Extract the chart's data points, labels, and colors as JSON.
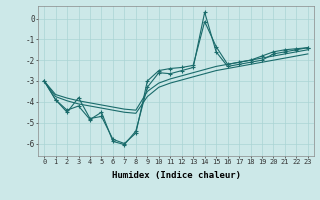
{
  "xlabel": "Humidex (Indice chaleur)",
  "xlim": [
    -0.5,
    23.5
  ],
  "ylim": [
    -6.6,
    0.6
  ],
  "yticks": [
    0,
    -1,
    -2,
    -3,
    -4,
    -5,
    -6
  ],
  "xticks": [
    0,
    1,
    2,
    3,
    4,
    5,
    6,
    7,
    8,
    9,
    10,
    11,
    12,
    13,
    14,
    15,
    16,
    17,
    18,
    19,
    20,
    21,
    22,
    23
  ],
  "bg_color": "#cce8e8",
  "line_color": "#1a6b6b",
  "grid_color": "#aad4d4",
  "line1_y": [
    -3.0,
    -3.9,
    -4.5,
    -3.8,
    -4.8,
    -4.7,
    -5.8,
    -6.0,
    -5.5,
    -3.0,
    -2.5,
    -2.4,
    -2.35,
    -2.25,
    -0.15,
    -1.35,
    -2.2,
    -2.1,
    -2.0,
    -1.8,
    -1.6,
    -1.5,
    -1.45,
    -1.4
  ],
  "line2_y": [
    -3.0,
    -3.9,
    -4.4,
    -4.2,
    -4.85,
    -4.5,
    -5.9,
    -6.05,
    -5.4,
    -3.3,
    -2.6,
    -2.65,
    -2.5,
    -2.35,
    0.3,
    -1.6,
    -2.3,
    -2.2,
    -2.1,
    -2.0,
    -1.7,
    -1.6,
    -1.5,
    -1.4
  ],
  "line3_y": [
    -3.0,
    -3.65,
    -3.82,
    -3.95,
    -4.05,
    -4.15,
    -4.25,
    -4.35,
    -4.4,
    -3.5,
    -3.1,
    -2.9,
    -2.75,
    -2.6,
    -2.45,
    -2.3,
    -2.2,
    -2.1,
    -2.0,
    -1.9,
    -1.8,
    -1.7,
    -1.6,
    -1.5
  ],
  "line4_y": [
    -3.0,
    -3.75,
    -3.95,
    -4.1,
    -4.2,
    -4.3,
    -4.4,
    -4.5,
    -4.55,
    -3.75,
    -3.3,
    -3.1,
    -2.95,
    -2.8,
    -2.65,
    -2.5,
    -2.4,
    -2.3,
    -2.2,
    -2.1,
    -2.0,
    -1.9,
    -1.8,
    -1.7
  ],
  "marker": "+",
  "markersize": 3,
  "linewidth": 0.8,
  "dpi": 100,
  "figsize": [
    3.2,
    2.0
  ]
}
